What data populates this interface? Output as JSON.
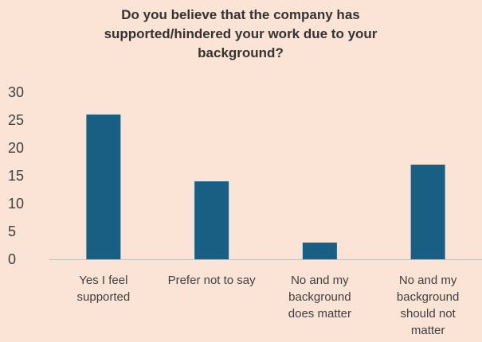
{
  "chart_data": {
    "type": "bar",
    "title_lines": [
      "Do you believe that the company has",
      "supported/hindered your work due to your",
      "background?"
    ],
    "categories": [
      [
        "Yes I feel",
        "supported"
      ],
      [
        "Prefer not to say"
      ],
      [
        "No and my",
        "background",
        "does matter"
      ],
      [
        "No and my",
        "background",
        "should not",
        "matter"
      ]
    ],
    "values": [
      26,
      14,
      3,
      17
    ],
    "ylim": [
      0,
      30
    ],
    "yticks": [
      0,
      5,
      10,
      15,
      20,
      25,
      30
    ],
    "grid": false,
    "legend": "none",
    "bar_color": "#195e83",
    "axis_color": "#bfbfbf",
    "background_color": "#fbe3d6"
  }
}
